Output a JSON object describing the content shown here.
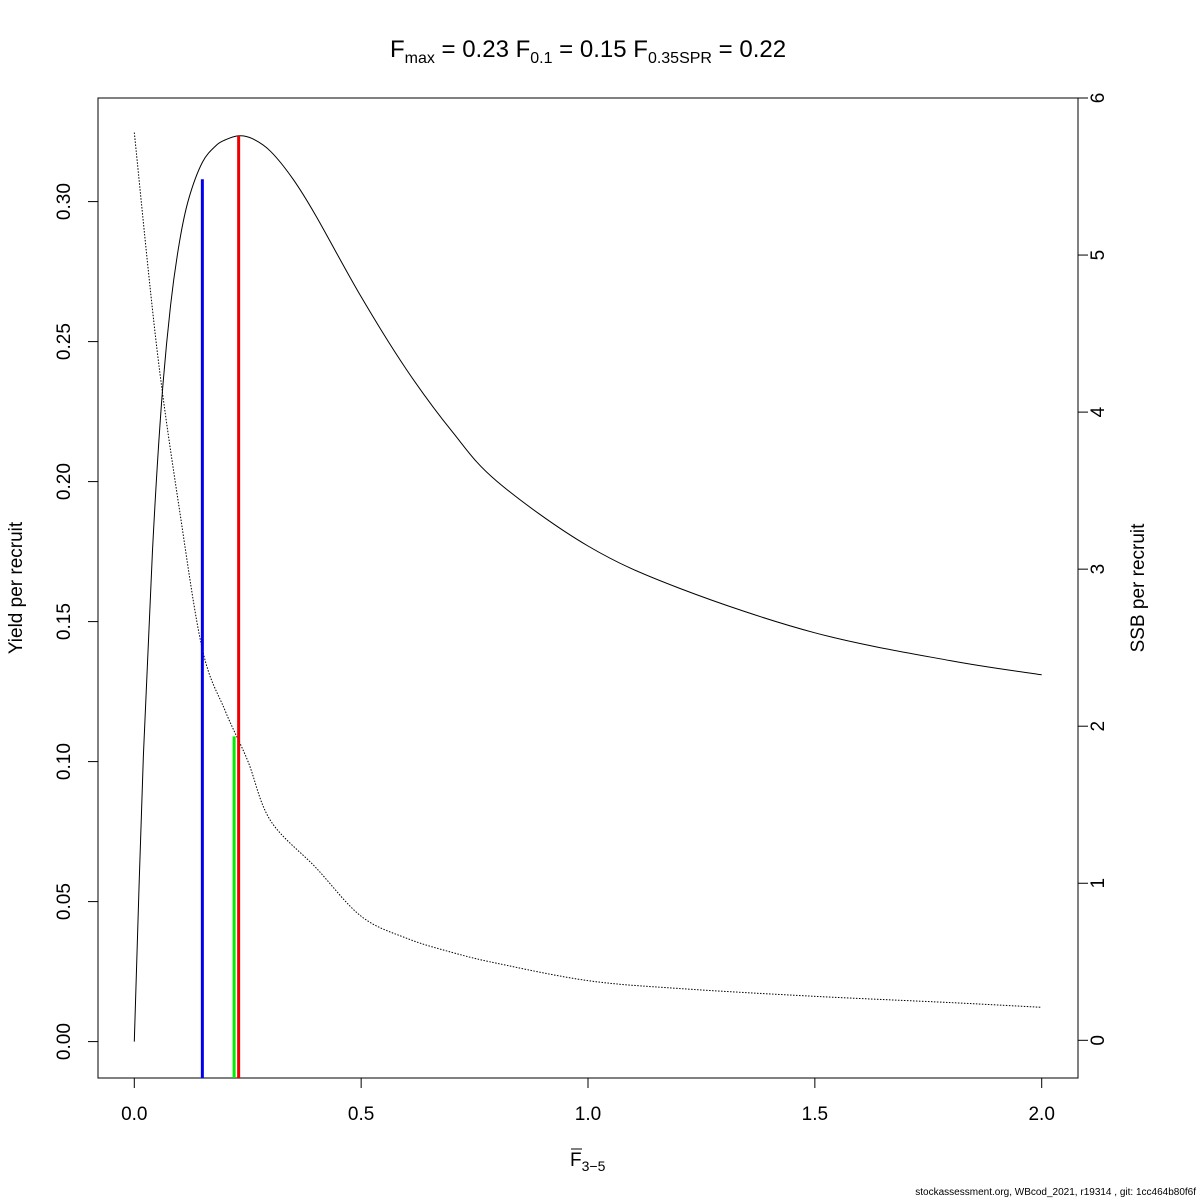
{
  "title": {
    "fmax": {
      "base": "F",
      "sub": "max",
      "value": "0.23"
    },
    "f01": {
      "base": "F",
      "sub": "0.1",
      "value": "0.15"
    },
    "f035spr": {
      "base": "F",
      "sub": "0.35SPR",
      "value": "0.22"
    }
  },
  "footer": "stockassessment.org, WBcod_2021, r19314 , git: 1cc464b80f6f",
  "chart_data": {
    "type": "line",
    "xlabel": {
      "base": "F",
      "sub": "3−5"
    },
    "ylabel_left": "Yield per recruit",
    "ylabel_right": "SSB per recruit",
    "xlim": [
      -0.08,
      2.08
    ],
    "ylim_left": [
      -0.013,
      0.337
    ],
    "ylim_right": [
      -0.24,
      6.0
    ],
    "x_ticks": [
      "0.0",
      "0.5",
      "1.0",
      "1.5",
      "2.0"
    ],
    "x_tick_values": [
      0,
      0.5,
      1.0,
      1.5,
      2.0
    ],
    "y_left_ticks": [
      "0.00",
      "0.05",
      "0.10",
      "0.15",
      "0.20",
      "0.25",
      "0.30"
    ],
    "y_left_tick_values": [
      0,
      0.05,
      0.1,
      0.15,
      0.2,
      0.25,
      0.3
    ],
    "y_right_ticks": [
      "0",
      "1",
      "2",
      "3",
      "4",
      "5",
      "6"
    ],
    "y_right_tick_values": [
      0,
      1,
      2,
      3,
      4,
      5,
      6
    ],
    "series": [
      {
        "axis": "left",
        "style": "solid",
        "color": "#000000",
        "x": [
          0,
          0.02,
          0.04,
          0.06,
          0.08,
          0.1,
          0.12,
          0.15,
          0.18,
          0.2,
          0.23,
          0.26,
          0.3,
          0.35,
          0.4,
          0.5,
          0.6,
          0.7,
          0.8,
          1.0,
          1.2,
          1.5,
          1.8,
          2.0
        ],
        "values": [
          0,
          0.102,
          0.175,
          0.228,
          0.263,
          0.286,
          0.301,
          0.314,
          0.32,
          0.322,
          0.3235,
          0.3225,
          0.318,
          0.308,
          0.295,
          0.266,
          0.24,
          0.218,
          0.2,
          0.177,
          0.162,
          0.146,
          0.136,
          0.131
        ]
      },
      {
        "axis": "right",
        "style": "dotted",
        "color": "#000000",
        "x": [
          0,
          0.05,
          0.1,
          0.15,
          0.2,
          0.25,
          0.3,
          0.4,
          0.5,
          0.6,
          0.7,
          0.8,
          1.0,
          1.2,
          1.5,
          1.8,
          2.0
        ],
        "values": [
          5.78,
          4.4,
          3.37,
          2.49,
          2.1,
          1.78,
          1.4,
          1.1,
          0.79,
          0.65,
          0.56,
          0.49,
          0.38,
          0.33,
          0.28,
          0.24,
          0.21
        ]
      }
    ],
    "reference_lines": [
      {
        "label": "F0.1",
        "x": 0.15,
        "y_top": 0.308,
        "color": "#0000ee"
      },
      {
        "label": "F0.35SPR",
        "x": 0.22,
        "y_top": 0.109,
        "color": "#00ee00"
      },
      {
        "label": "Fmax",
        "x": 0.23,
        "y_top": 0.3235,
        "color": "#ee0000"
      }
    ]
  }
}
